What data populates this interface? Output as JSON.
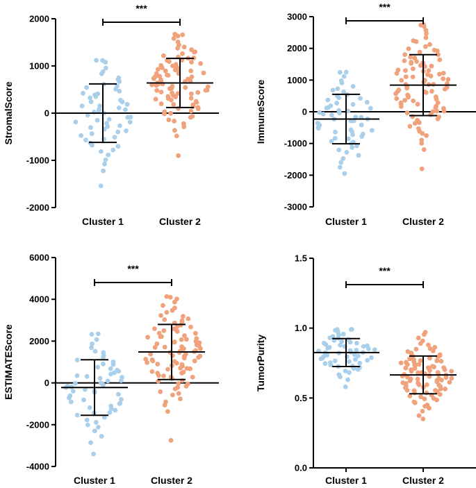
{
  "colors": {
    "cluster1": "#a9cfea",
    "cluster2": "#f0a27c",
    "axis": "#000000"
  },
  "chart_data": [
    {
      "type": "scatter",
      "ylabel": "StromalScore",
      "yticks": [
        2000,
        1000,
        0,
        -1000,
        -2000
      ],
      "tick_labels": [
        "2000",
        "1000",
        "0",
        "-1000",
        "-2000"
      ],
      "ylim": [
        -2000,
        2000
      ],
      "zero_line": true,
      "categories": [
        "Cluster 1",
        "Cluster 2"
      ],
      "significance": "***",
      "groups": [
        {
          "n": 60,
          "mean": 0,
          "sd": 620,
          "min": -1540,
          "max": 1120,
          "seed": 11
        },
        {
          "n": 95,
          "mean": 640,
          "sd": 520,
          "min": -900,
          "max": 1660,
          "seed": 23
        }
      ]
    },
    {
      "type": "scatter",
      "ylabel": "ImmuneScore",
      "yticks": [
        3000,
        2000,
        1000,
        0,
        -1000,
        -2000,
        -3000
      ],
      "tick_labels": [
        "3000",
        "2000",
        "1000",
        "0",
        "-1000",
        "-2000",
        "-3000"
      ],
      "ylim": [
        -3000,
        3000
      ],
      "zero_line": true,
      "categories": [
        "Cluster 1",
        "Cluster 2"
      ],
      "significance": "***",
      "groups": [
        {
          "n": 60,
          "mean": -230,
          "sd": 780,
          "min": -1950,
          "max": 1250,
          "seed": 37
        },
        {
          "n": 95,
          "mean": 840,
          "sd": 960,
          "min": -1800,
          "max": 2750,
          "seed": 41
        }
      ]
    },
    {
      "type": "scatter",
      "ylabel": "ESTIMATEScore",
      "yticks": [
        6000,
        4000,
        2000,
        0,
        -2000,
        -4000
      ],
      "tick_labels": [
        "6000",
        "4000",
        "2000",
        "0",
        "-2000",
        "-4000"
      ],
      "ylim": [
        -4000,
        6000
      ],
      "zero_line": true,
      "categories": [
        "Cluster 1",
        "Cluster 2"
      ],
      "significance": "***",
      "groups": [
        {
          "n": 60,
          "mean": -220,
          "sd": 1330,
          "min": -3400,
          "max": 2350,
          "seed": 53
        },
        {
          "n": 95,
          "mean": 1480,
          "sd": 1320,
          "min": -2750,
          "max": 4100,
          "seed": 67
        }
      ]
    },
    {
      "type": "scatter",
      "ylabel": "TumorPurity",
      "yticks": [
        1.5,
        1.0,
        0.5,
        0.0
      ],
      "tick_labels": [
        "1.5",
        "1.0",
        "0.5",
        "0.0"
      ],
      "ylim": [
        0,
        1.5
      ],
      "zero_line": false,
      "categories": [
        "Cluster 1",
        "Cluster 2"
      ],
      "significance": "***",
      "groups": [
        {
          "n": 60,
          "mean": 0.825,
          "sd": 0.1,
          "min": 0.58,
          "max": 0.99,
          "seed": 71
        },
        {
          "n": 95,
          "mean": 0.665,
          "sd": 0.135,
          "min": 0.35,
          "max": 0.97,
          "seed": 89
        }
      ]
    }
  ]
}
